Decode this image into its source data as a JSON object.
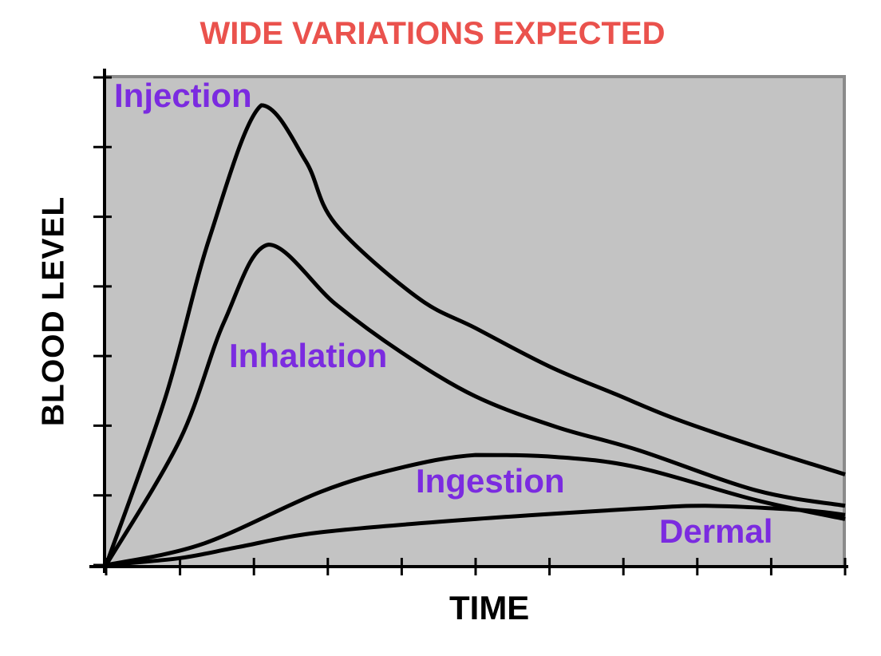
{
  "chart_data": {
    "type": "line",
    "title": "WIDE VARIATIONS EXPECTED",
    "xlabel": "TIME",
    "ylabel": "BLOOD LEVEL",
    "x_axis": {
      "min": 0,
      "max": 10,
      "ticks": [
        0,
        1,
        2,
        3,
        4,
        5,
        6,
        7,
        8,
        9,
        10
      ],
      "tick_labels_shown": false
    },
    "y_axis": {
      "min": 0,
      "max": 7,
      "ticks": [
        0,
        1,
        2,
        3,
        4,
        5,
        6,
        7
      ],
      "tick_labels_shown": false
    },
    "grid": false,
    "legend_position": "none (curves labeled inline in plot)",
    "colors": {
      "title": "#EA524D",
      "curve_labels": "#7B2BE0",
      "curves": "#000000",
      "axes": "#000000",
      "plot_background": "#C3C3C3",
      "plot_border": "#8B8B8B",
      "page_background": "#FFFFFF"
    },
    "series": [
      {
        "name": "Injection",
        "points": [
          [
            0,
            0
          ],
          [
            0.8,
            2.4
          ],
          [
            1.4,
            4.7
          ],
          [
            2.1,
            6.6
          ],
          [
            2.7,
            5.8
          ],
          [
            3.1,
            4.9
          ],
          [
            4.2,
            3.85
          ],
          [
            5.0,
            3.4
          ],
          [
            6.0,
            2.85
          ],
          [
            6.9,
            2.45
          ],
          [
            7.7,
            2.1
          ],
          [
            8.8,
            1.7
          ],
          [
            10,
            1.3
          ]
        ]
      },
      {
        "name": "Inhalation",
        "points": [
          [
            0,
            0
          ],
          [
            1.0,
            1.8
          ],
          [
            1.6,
            3.5
          ],
          [
            2.2,
            4.6
          ],
          [
            3.1,
            3.75
          ],
          [
            4.0,
            3.05
          ],
          [
            5.0,
            2.42
          ],
          [
            6.1,
            1.98
          ],
          [
            7.2,
            1.65
          ],
          [
            8.8,
            1.07
          ],
          [
            10,
            0.85
          ]
        ]
      },
      {
        "name": "Ingestion",
        "points": [
          [
            0,
            0
          ],
          [
            1.3,
            0.3
          ],
          [
            2.9,
            1.05
          ],
          [
            4.0,
            1.4
          ],
          [
            5.0,
            1.58
          ],
          [
            6.1,
            1.55
          ],
          [
            7.2,
            1.4
          ],
          [
            8.8,
            0.93
          ],
          [
            10,
            0.66
          ]
        ]
      },
      {
        "name": "Dermal",
        "points": [
          [
            0,
            0
          ],
          [
            1.0,
            0.1
          ],
          [
            1.8,
            0.26
          ],
          [
            2.9,
            0.47
          ],
          [
            5.0,
            0.66
          ],
          [
            7.2,
            0.81
          ],
          [
            8.1,
            0.85
          ],
          [
            9.4,
            0.79
          ],
          [
            10,
            0.72
          ]
        ]
      }
    ]
  }
}
